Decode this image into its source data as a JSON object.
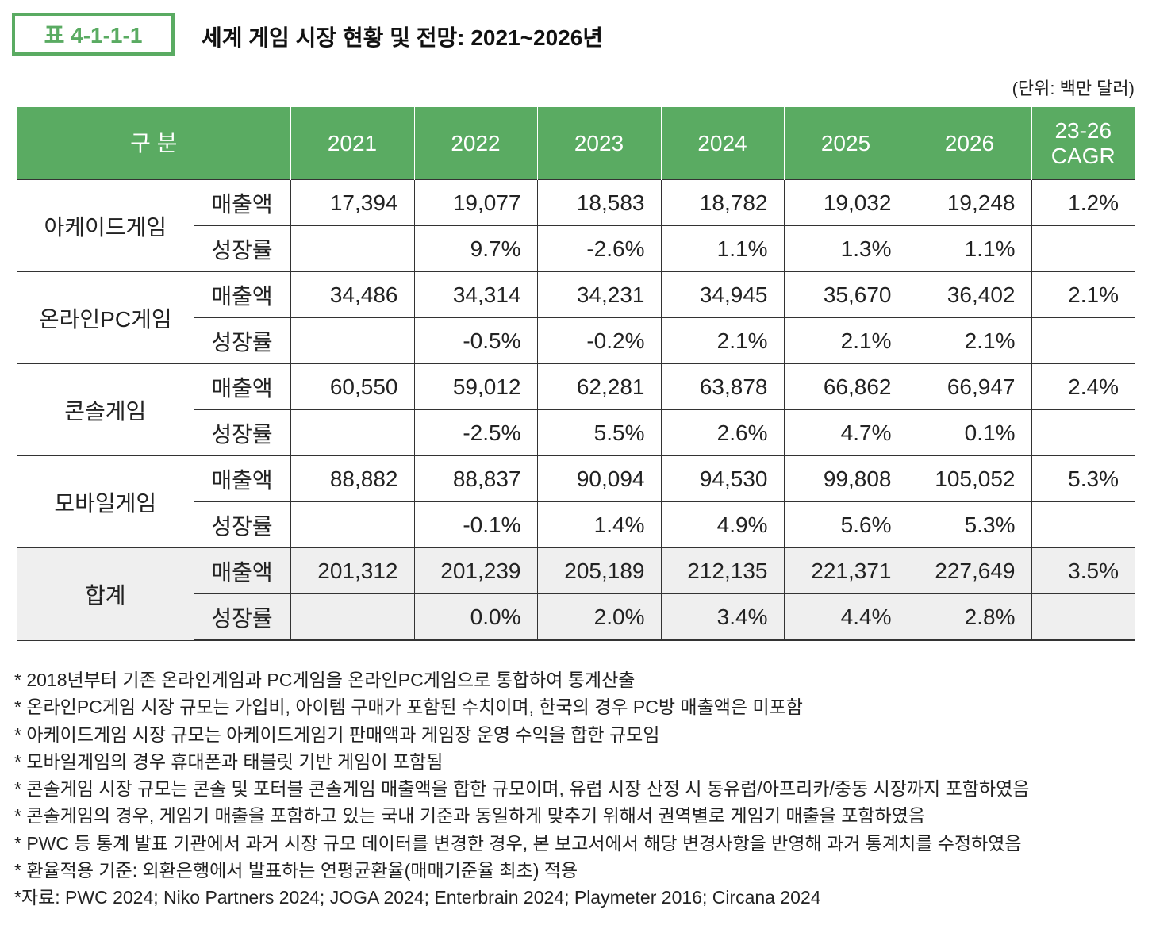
{
  "header": {
    "table_number": "표 4-1-1-1",
    "title": "세계 게임 시장 현황 및 전망: 2021~2026년",
    "unit": "(단위: 백만 달러)"
  },
  "colors": {
    "accent": "#5aab62",
    "total_row_bg": "#efefef"
  },
  "table": {
    "columns": [
      "구 분",
      "2021",
      "2022",
      "2023",
      "2024",
      "2025",
      "2026",
      "23-26 CAGR"
    ],
    "groups": [
      {
        "name": "아케이드게임",
        "total": false,
        "rows": [
          {
            "label": "매출액",
            "values": [
              "17,394",
              "19,077",
              "18,583",
              "18,782",
              "19,032",
              "19,248",
              "1.2%"
            ]
          },
          {
            "label": "성장률",
            "values": [
              "",
              "9.7%",
              "-2.6%",
              "1.1%",
              "1.3%",
              "1.1%",
              ""
            ]
          }
        ]
      },
      {
        "name": "온라인PC게임",
        "total": false,
        "rows": [
          {
            "label": "매출액",
            "values": [
              "34,486",
              "34,314",
              "34,231",
              "34,945",
              "35,670",
              "36,402",
              "2.1%"
            ]
          },
          {
            "label": "성장률",
            "values": [
              "",
              "-0.5%",
              "-0.2%",
              "2.1%",
              "2.1%",
              "2.1%",
              ""
            ]
          }
        ]
      },
      {
        "name": "콘솔게임",
        "total": false,
        "rows": [
          {
            "label": "매출액",
            "values": [
              "60,550",
              "59,012",
              "62,281",
              "63,878",
              "66,862",
              "66,947",
              "2.4%"
            ]
          },
          {
            "label": "성장률",
            "values": [
              "",
              "-2.5%",
              "5.5%",
              "2.6%",
              "4.7%",
              "0.1%",
              ""
            ]
          }
        ]
      },
      {
        "name": "모바일게임",
        "total": false,
        "rows": [
          {
            "label": "매출액",
            "values": [
              "88,882",
              "88,837",
              "90,094",
              "94,530",
              "99,808",
              "105,052",
              "5.3%"
            ]
          },
          {
            "label": "성장률",
            "values": [
              "",
              "-0.1%",
              "1.4%",
              "4.9%",
              "5.6%",
              "5.3%",
              ""
            ]
          }
        ]
      },
      {
        "name": "합계",
        "total": true,
        "rows": [
          {
            "label": "매출액",
            "values": [
              "201,312",
              "201,239",
              "205,189",
              "212,135",
              "221,371",
              "227,649",
              "3.5%"
            ]
          },
          {
            "label": "성장률",
            "values": [
              "",
              "0.0%",
              "2.0%",
              "3.4%",
              "4.4%",
              "2.8%",
              ""
            ]
          }
        ]
      }
    ]
  },
  "notes": [
    "* 2018년부터 기존 온라인게임과 PC게임을 온라인PC게임으로 통합하여 통계산출",
    "* 온라인PC게임 시장 규모는 가입비, 아이템 구매가 포함된 수치이며, 한국의 경우 PC방 매출액은 미포함",
    "* 아케이드게임 시장 규모는 아케이드게임기 판매액과 게임장 운영 수익을 합한 규모임",
    "* 모바일게임의 경우 휴대폰과 태블릿 기반 게임이 포함됨",
    "* 콘솔게임 시장 규모는 콘솔 및 포터블 콘솔게임 매출액을 합한 규모이며, 유럽 시장 산정 시 동유럽/아프리카/중동 시장까지 포함하였음",
    "* 콘솔게임의 경우, 게임기 매출을 포함하고 있는 국내 기준과 동일하게 맞추기 위해서 권역별로 게임기 매출을 포함하였음",
    "* PWC 등 통계 발표 기관에서 과거 시장 규모 데이터를 변경한 경우, 본 보고서에서 해당 변경사항을 반영해 과거 통계치를 수정하였음",
    "* 환율적용 기준: 외환은행에서 발표하는 연평균환율(매매기준율 최초) 적용",
    "*자료: PWC 2024; Niko Partners 2024; JOGA 2024; Enterbrain 2024; Playmeter 2016; Circana 2024"
  ]
}
